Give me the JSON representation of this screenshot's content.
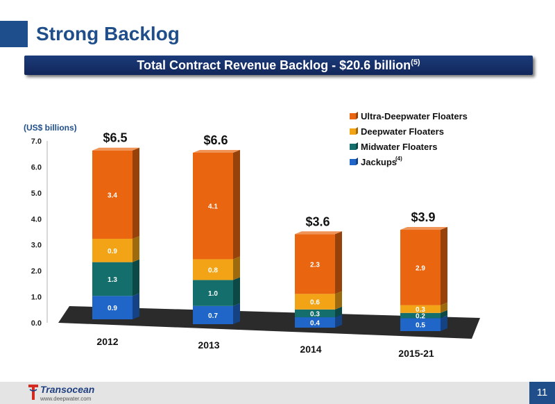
{
  "slide": {
    "title": "Strong Backlog",
    "banner_text": "Total Contract Revenue Backlog - $20.6 billion",
    "banner_footnote": "(5)",
    "page_number": "11"
  },
  "footer": {
    "logo_name": "Transocean",
    "website": "www.deepwater.com"
  },
  "colors": {
    "ultra_deepwater": "#e9650f",
    "deepwater": "#f2a416",
    "midwater": "#136e6c",
    "jackups": "#1f66c8",
    "title": "#1f4e8a",
    "banner": "#1b3b7a"
  },
  "chart_data": {
    "type": "bar",
    "stacked": true,
    "three_d": true,
    "units_label": "(US$ billions)",
    "categories": [
      "2012",
      "2013",
      "2014",
      "2015-21"
    ],
    "totals": [
      "$6.5",
      "$6.6",
      "$3.6",
      "$3.9"
    ],
    "series": [
      {
        "name": "Jackups",
        "footnote": "(4)",
        "color": "#1f66c8",
        "values": [
          0.9,
          0.7,
          0.4,
          0.5
        ]
      },
      {
        "name": "Midwater Floaters",
        "color": "#136e6c",
        "values": [
          1.3,
          1.0,
          0.3,
          0.2
        ]
      },
      {
        "name": "Deepwater Floaters",
        "color": "#f2a416",
        "values": [
          0.9,
          0.8,
          0.6,
          0.3
        ]
      },
      {
        "name": "Ultra-Deepwater Floaters",
        "color": "#e9650f",
        "values": [
          3.4,
          4.1,
          2.3,
          2.9
        ]
      }
    ],
    "legend_order": [
      "Ultra-Deepwater Floaters",
      "Deepwater Floaters",
      "Midwater Floaters",
      "Jackups"
    ],
    "ylim": [
      0,
      7
    ],
    "yticks": [
      "0.0",
      "1.0",
      "2.0",
      "3.0",
      "4.0",
      "5.0",
      "6.0",
      "7.0"
    ],
    "legend_position": "top-right",
    "grid": false
  }
}
